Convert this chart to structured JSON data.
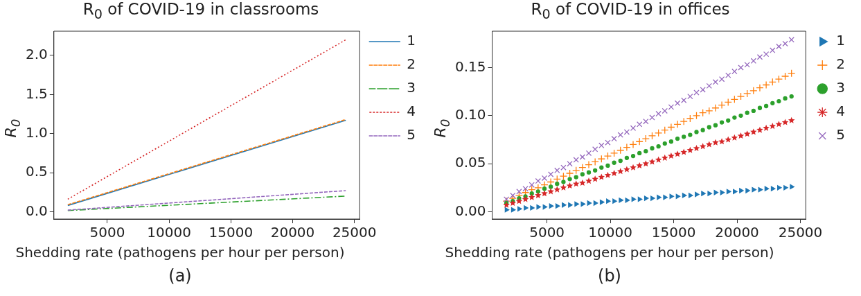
{
  "chart_data": [
    {
      "type": "line",
      "title": "R$_{0}$ of COVID-19 in classrooms",
      "xlabel": "Shedding rate (pathogens per hour per person)",
      "ylabel": "R$_{0}$",
      "annotations": [
        "(a)"
      ],
      "legend": "right",
      "grid": false,
      "xlim": [
        675,
        25425
      ],
      "xticks": [
        5000,
        10000,
        15000,
        20000,
        25000
      ],
      "ylim": [
        -0.094,
        2.31
      ],
      "yticks": [
        {
          "value": 0,
          "label": "0.0"
        },
        {
          "value": 0.5,
          "label": "0.5"
        },
        {
          "value": 1,
          "label": "1.0"
        },
        {
          "value": 1.5,
          "label": "1.5"
        },
        {
          "value": 2,
          "label": "2.0"
        }
      ],
      "x": [
        1800,
        24300
      ],
      "series": [
        {
          "name": "1",
          "color": "#1f77b4",
          "line_style": "solid",
          "values": [
            0.08,
            1.17
          ]
        },
        {
          "name": "2",
          "color": "#ff7f0e",
          "line_style": "dashed",
          "values": [
            0.09,
            1.18
          ]
        },
        {
          "name": "3",
          "color": "#2ca02c",
          "line_style": "dashdot",
          "values": [
            0.015,
            0.2
          ]
        },
        {
          "name": "4",
          "color": "#d62728",
          "line_style": "dotted",
          "values": [
            0.16,
            2.2
          ]
        },
        {
          "name": "5",
          "color": "#9467bd",
          "line_style": "dashed",
          "values": [
            0.02,
            0.27
          ]
        }
      ]
    },
    {
      "type": "scatter",
      "title": "R$_{0}$ of COVID-19 in offices",
      "xlabel": "Shedding rate (pathogens per hour per person)",
      "ylabel": "R$_{0}$",
      "annotations": [
        "(b)"
      ],
      "legend": "right",
      "grid": false,
      "xlim": [
        675,
        25425
      ],
      "xticks": [
        5000,
        10000,
        15000,
        20000,
        25000
      ],
      "ylim": [
        -0.0076,
        0.1879
      ],
      "yticks": [
        {
          "value": 0,
          "label": "0.00"
        },
        {
          "value": 0.05,
          "label": "0.05"
        },
        {
          "value": 0.1,
          "label": "0.10"
        },
        {
          "value": 0.15,
          "label": "0.15"
        }
      ],
      "x": [
        1800,
        2300,
        2800,
        3300,
        3800,
        4300,
        4800,
        5300,
        5800,
        6300,
        6800,
        7300,
        7800,
        8300,
        8800,
        9300,
        9800,
        10300,
        10800,
        11300,
        11800,
        12300,
        12800,
        13300,
        13800,
        14300,
        14800,
        15300,
        15800,
        16300,
        16800,
        17300,
        17800,
        18300,
        18800,
        19300,
        19800,
        20300,
        20800,
        21300,
        21800,
        22300,
        22800,
        23300,
        23800,
        24300
      ],
      "series": [
        {
          "name": "1",
          "color": "#1f77b4",
          "marker": "triangle",
          "values": [
            0.002,
            0.002,
            0.003,
            0.004,
            0.004,
            0.005,
            0.005,
            0.006,
            0.006,
            0.007,
            0.007,
            0.008,
            0.008,
            0.009,
            0.009,
            0.01,
            0.011,
            0.011,
            0.012,
            0.012,
            0.013,
            0.013,
            0.014,
            0.014,
            0.015,
            0.015,
            0.016,
            0.016,
            0.017,
            0.017,
            0.018,
            0.019,
            0.019,
            0.02,
            0.02,
            0.021,
            0.021,
            0.022,
            0.022,
            0.023,
            0.023,
            0.024,
            0.024,
            0.025,
            0.025,
            0.026
          ]
        },
        {
          "name": "2",
          "color": "#ff7f0e",
          "marker": "plus",
          "values": [
            0.011,
            0.014,
            0.017,
            0.02,
            0.023,
            0.025,
            0.028,
            0.031,
            0.034,
            0.037,
            0.04,
            0.043,
            0.046,
            0.049,
            0.052,
            0.055,
            0.058,
            0.061,
            0.064,
            0.067,
            0.07,
            0.073,
            0.076,
            0.079,
            0.082,
            0.085,
            0.088,
            0.091,
            0.094,
            0.097,
            0.1,
            0.103,
            0.105,
            0.108,
            0.111,
            0.114,
            0.117,
            0.12,
            0.123,
            0.126,
            0.129,
            0.132,
            0.135,
            0.138,
            0.141,
            0.144
          ]
        },
        {
          "name": "3",
          "color": "#2ca02c",
          "marker": "circle",
          "values": [
            0.009,
            0.011,
            0.014,
            0.016,
            0.019,
            0.021,
            0.024,
            0.026,
            0.029,
            0.031,
            0.034,
            0.036,
            0.039,
            0.041,
            0.043,
            0.046,
            0.048,
            0.051,
            0.053,
            0.056,
            0.058,
            0.061,
            0.063,
            0.066,
            0.068,
            0.071,
            0.073,
            0.076,
            0.078,
            0.08,
            0.083,
            0.085,
            0.088,
            0.09,
            0.093,
            0.095,
            0.098,
            0.1,
            0.103,
            0.105,
            0.108,
            0.11,
            0.113,
            0.115,
            0.118,
            0.12
          ]
        },
        {
          "name": "4",
          "color": "#d62728",
          "marker": "star",
          "values": [
            0.007,
            0.009,
            0.011,
            0.013,
            0.015,
            0.017,
            0.019,
            0.021,
            0.023,
            0.025,
            0.027,
            0.029,
            0.03,
            0.032,
            0.034,
            0.036,
            0.038,
            0.04,
            0.042,
            0.044,
            0.046,
            0.048,
            0.05,
            0.052,
            0.054,
            0.056,
            0.058,
            0.06,
            0.062,
            0.064,
            0.066,
            0.068,
            0.07,
            0.072,
            0.073,
            0.075,
            0.077,
            0.079,
            0.081,
            0.083,
            0.085,
            0.087,
            0.089,
            0.091,
            0.093,
            0.095
          ]
        },
        {
          "name": "5",
          "color": "#9467bd",
          "marker": "cross",
          "values": [
            0.013,
            0.017,
            0.021,
            0.024,
            0.028,
            0.032,
            0.035,
            0.039,
            0.043,
            0.046,
            0.05,
            0.054,
            0.057,
            0.061,
            0.065,
            0.069,
            0.072,
            0.076,
            0.08,
            0.083,
            0.087,
            0.091,
            0.094,
            0.098,
            0.102,
            0.105,
            0.109,
            0.113,
            0.116,
            0.12,
            0.124,
            0.127,
            0.131,
            0.135,
            0.138,
            0.142,
            0.146,
            0.15,
            0.153,
            0.157,
            0.161,
            0.164,
            0.168,
            0.172,
            0.175,
            0.179
          ]
        }
      ]
    }
  ]
}
